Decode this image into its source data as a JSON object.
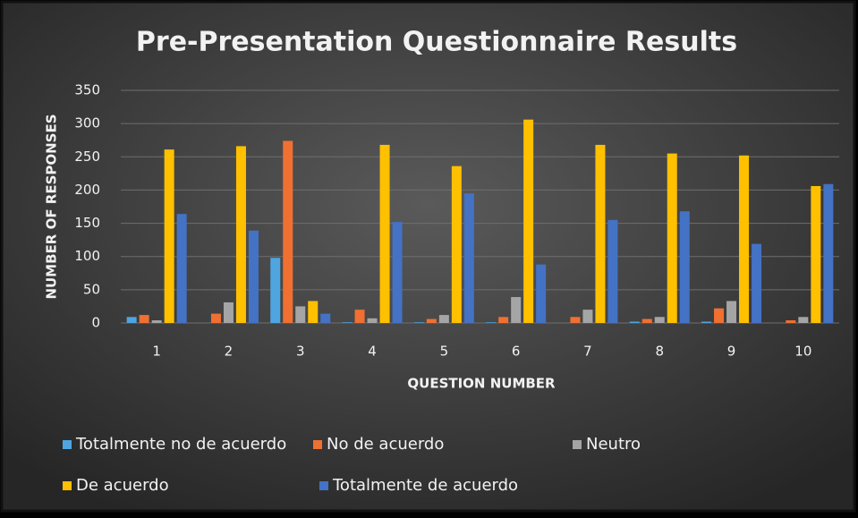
{
  "chart_data": {
    "type": "bar",
    "title": "Pre-Presentation Questionnaire Results",
    "x_label": "QUESTION NUMBER",
    "y_label": "NUMBER OF RESPONSES",
    "categories": [
      "1",
      "2",
      "3",
      "4",
      "5",
      "6",
      "7",
      "8",
      "9",
      "10"
    ],
    "series": [
      {
        "name": "Totalmente no de acuerdo",
        "color": "#4ea5e0",
        "values": [
          9,
          0,
          98,
          1,
          1,
          1,
          0,
          2,
          2,
          0
        ]
      },
      {
        "name": "No de acuerdo",
        "color": "#f07032",
        "values": [
          12,
          14,
          274,
          20,
          6,
          9,
          9,
          6,
          22,
          4
        ]
      },
      {
        "name": "Neutro",
        "color": "#a5a5a5",
        "values": [
          4,
          31,
          25,
          7,
          12,
          39,
          20,
          9,
          33,
          9
        ]
      },
      {
        "name": "De acuerdo",
        "color": "#ffc000",
        "values": [
          261,
          266,
          33,
          268,
          236,
          306,
          268,
          255,
          252,
          206
        ]
      },
      {
        "name": "Totalmente de acuerdo",
        "color": "#4472c4",
        "values": [
          164,
          139,
          14,
          152,
          195,
          88,
          155,
          168,
          119,
          209
        ]
      }
    ],
    "ylim": [
      0,
      350
    ],
    "yticks": [
      0,
      50,
      100,
      150,
      200,
      250,
      300,
      350
    ],
    "grid": true,
    "legend": "bottom"
  }
}
